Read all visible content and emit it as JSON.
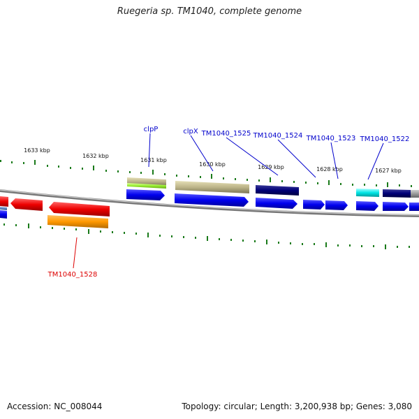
{
  "title": "Ruegeria sp. TM1040, complete genome",
  "footer": {
    "accession": "Accession: NC_008044",
    "summary": "Topology: circular; Length: 3,200,938 bp; Genes: 3,080"
  },
  "scale_labels": [
    "1633 kbp",
    "1632 kbp",
    "1631 kbp",
    "1630 kbp",
    "1629 kbp",
    "1628 kbp",
    "1627 kbp"
  ],
  "gene_labels": {
    "clpP": "clpP",
    "clpX": "clpX",
    "g1525": "TM1040_1525",
    "g1524": "TM1040_1524",
    "g1523": "TM1040_1523",
    "g1522": "TM1040_1522",
    "g1528": "TM1040_1528"
  },
  "colors": {
    "backbone": "#8a8a8a",
    "forward_cds": "#0000ee",
    "reverse_cds": "#ee0000",
    "tick": "#1a7a1a",
    "label_blue": "#0000cc",
    "label_red": "#dd0000"
  }
}
